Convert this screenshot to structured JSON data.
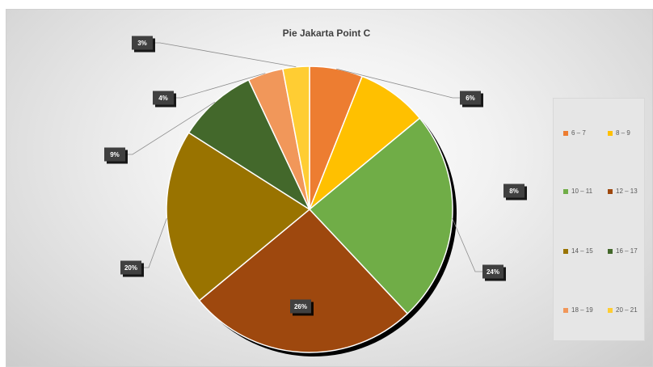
{
  "chart_data": {
    "type": "pie",
    "title": "Pie Jakarta Point C",
    "categories": [
      "6 – 7",
      "8 – 9",
      "10 – 11",
      "12 – 13",
      "14 – 15",
      "16 – 17",
      "18 – 19",
      "20 – 21"
    ],
    "values": [
      6,
      8,
      24,
      26,
      20,
      9,
      4,
      3
    ],
    "data_labels": [
      "6%",
      "8%",
      "24%",
      "26%",
      "20%",
      "9%",
      "4%",
      "3%"
    ],
    "colors": [
      "#ED7D31",
      "#FFC000",
      "#70AD47",
      "#9E480E",
      "#997300",
      "#43682B",
      "#F1975A",
      "#FFCD33"
    ],
    "legend_position": "right"
  }
}
